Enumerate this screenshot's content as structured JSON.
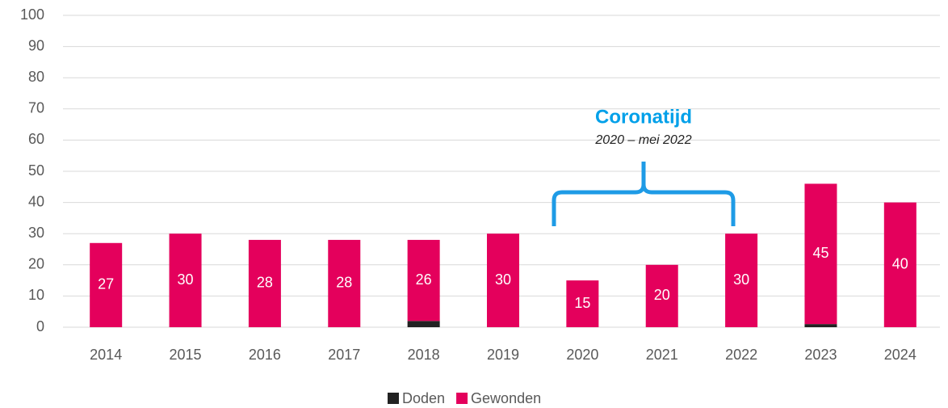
{
  "chart_data": {
    "type": "stacked_bar",
    "categories": [
      "2014",
      "2015",
      "2016",
      "2017",
      "2018",
      "2019",
      "2020",
      "2021",
      "2022",
      "2023",
      "2024"
    ],
    "series": [
      {
        "name": "Doden",
        "color": "#222222",
        "values": [
          0,
          0,
          0,
          0,
          2,
          0,
          0,
          0,
          0,
          1,
          0
        ]
      },
      {
        "name": "Gewonden",
        "color": "#e4005c",
        "values": [
          27,
          30,
          28,
          28,
          26,
          30,
          15,
          20,
          30,
          45,
          40
        ]
      }
    ],
    "ylim": [
      0,
      100
    ],
    "yticks": [
      0,
      10,
      20,
      30,
      40,
      50,
      60,
      70,
      80,
      90,
      100
    ],
    "grid": true,
    "annotation": {
      "title": "Coronatijd",
      "subtitle": "2020 – mei 2022"
    },
    "legend": "bottom"
  }
}
